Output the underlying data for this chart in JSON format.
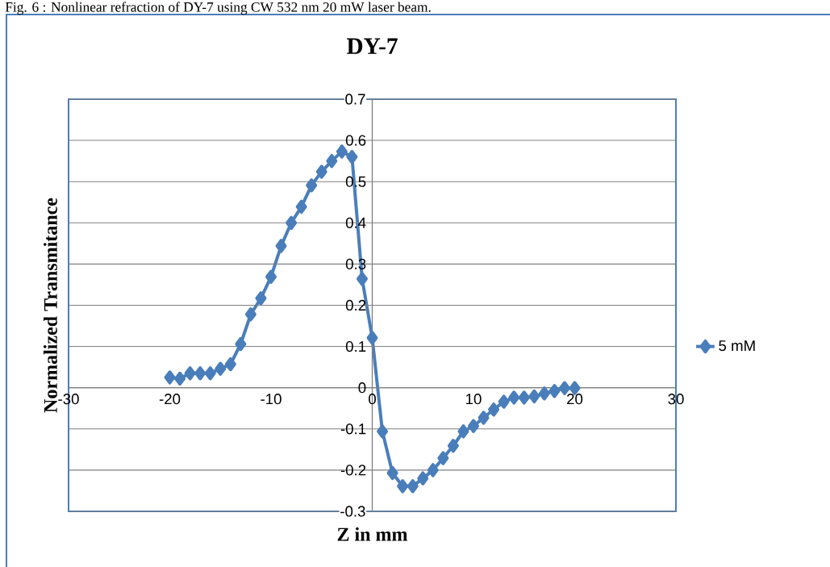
{
  "chart_data": {
    "type": "line",
    "title": "DY-7",
    "xlabel": "Z  in mm",
    "ylabel": "Normalized Transmitance",
    "annotations": [
      "Fig. 6 : Nonlinear refraction of DY-7 using CW 532 nm 20 mW laser beam."
    ],
    "x": [
      -20,
      -19,
      -18,
      -17,
      -16,
      -15,
      -14,
      -13,
      -12,
      -11,
      -10,
      -9,
      -8,
      -7,
      -6,
      -5,
      -4,
      -3,
      -2,
      -1,
      0,
      1,
      2,
      3,
      4,
      5,
      6,
      7,
      8,
      9,
      10,
      11,
      12,
      13,
      14,
      15,
      16,
      17,
      18,
      19,
      20
    ],
    "series": [
      {
        "name": "5 mM",
        "color": "#4a7ebb",
        "values": [
          0.025,
          0.022,
          0.035,
          0.035,
          0.035,
          0.046,
          0.057,
          0.106,
          0.178,
          0.217,
          0.269,
          0.344,
          0.4,
          0.439,
          0.491,
          0.524,
          0.55,
          0.573,
          0.56,
          0.264,
          0.121,
          -0.106,
          -0.207,
          -0.239,
          -0.239,
          -0.22,
          -0.2,
          -0.171,
          -0.141,
          -0.106,
          -0.093,
          -0.073,
          -0.053,
          -0.034,
          -0.024,
          -0.024,
          -0.021,
          -0.014,
          -0.008,
          -0.001,
          -0.001
        ]
      }
    ],
    "xlim": [
      -30,
      30
    ],
    "xticks": [
      -30,
      -20,
      -10,
      0,
      10,
      20,
      30
    ],
    "ylim": [
      -0.3,
      0.7
    ],
    "yticks": [
      -0.3,
      -0.2,
      -0.1,
      0,
      0.1,
      0.2,
      0.3,
      0.4,
      0.5,
      0.6,
      0.7
    ],
    "grid": "y",
    "legend": "right",
    "marker": "diamond",
    "line_style": "solid"
  }
}
